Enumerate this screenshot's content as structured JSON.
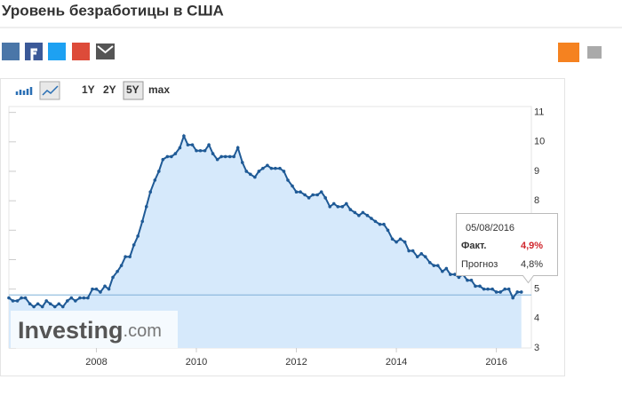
{
  "header": {
    "title": "Уровень безработицы в США"
  },
  "toolbar": {
    "ranges": [
      "1Y",
      "2Y",
      "5Y",
      "max"
    ]
  },
  "watermark": {
    "brand": "Investing",
    "suffix": ".com"
  },
  "tooltip": {
    "date": "05/08/2016",
    "actual": {
      "name": "Факт.",
      "value": 4.9,
      "label": "4,9%"
    },
    "forecast": {
      "name": "Прогноз",
      "value": 4.8,
      "label": "4,8%"
    }
  },
  "chart_data": {
    "type": "line",
    "color": "#1f5a96",
    "area_color": "#d6e9fb",
    "xlim": [
      2006.25,
      2016.7
    ],
    "xticks": [
      2008,
      2010,
      2012,
      2014,
      2016
    ],
    "ylim": [
      3,
      11.2
    ],
    "yticks": [
      3,
      4,
      5,
      6,
      7,
      8,
      9,
      10,
      11
    ],
    "x": [
      2006.25,
      2006.33,
      2006.42,
      2006.5,
      2006.58,
      2006.67,
      2006.75,
      2006.83,
      2006.92,
      2007.0,
      2007.08,
      2007.17,
      2007.25,
      2007.33,
      2007.42,
      2007.5,
      2007.58,
      2007.67,
      2007.75,
      2007.83,
      2007.92,
      2008.0,
      2008.08,
      2008.17,
      2008.25,
      2008.33,
      2008.42,
      2008.5,
      2008.58,
      2008.67,
      2008.75,
      2008.83,
      2008.92,
      2009.0,
      2009.08,
      2009.17,
      2009.25,
      2009.33,
      2009.42,
      2009.5,
      2009.58,
      2009.67,
      2009.75,
      2009.83,
      2009.92,
      2010.0,
      2010.08,
      2010.17,
      2010.25,
      2010.33,
      2010.42,
      2010.5,
      2010.58,
      2010.67,
      2010.75,
      2010.83,
      2010.92,
      2011.0,
      2011.08,
      2011.17,
      2011.25,
      2011.33,
      2011.42,
      2011.5,
      2011.58,
      2011.67,
      2011.75,
      2011.83,
      2011.92,
      2012.0,
      2012.08,
      2012.17,
      2012.25,
      2012.33,
      2012.42,
      2012.5,
      2012.58,
      2012.67,
      2012.75,
      2012.83,
      2012.92,
      2013.0,
      2013.08,
      2013.17,
      2013.25,
      2013.33,
      2013.42,
      2013.5,
      2013.58,
      2013.67,
      2013.75,
      2013.83,
      2013.92,
      2014.0,
      2014.08,
      2014.17,
      2014.25,
      2014.33,
      2014.42,
      2014.5,
      2014.58,
      2014.67,
      2014.75,
      2014.83,
      2014.92,
      2015.0,
      2015.08,
      2015.17,
      2015.25,
      2015.33,
      2015.42,
      2015.5,
      2015.58,
      2015.67,
      2015.75,
      2015.83,
      2015.92,
      2016.0,
      2016.08,
      2016.17,
      2016.25,
      2016.33,
      2016.42,
      2016.5
    ],
    "values": [
      4.7,
      4.6,
      4.6,
      4.7,
      4.7,
      4.5,
      4.4,
      4.5,
      4.4,
      4.6,
      4.5,
      4.4,
      4.5,
      4.4,
      4.6,
      4.7,
      4.6,
      4.7,
      4.7,
      4.7,
      5.0,
      5.0,
      4.9,
      5.1,
      5.0,
      5.4,
      5.6,
      5.8,
      6.1,
      6.1,
      6.5,
      6.8,
      7.3,
      7.8,
      8.3,
      8.7,
      9.0,
      9.4,
      9.5,
      9.5,
      9.6,
      9.8,
      10.2,
      9.9,
      9.9,
      9.7,
      9.7,
      9.7,
      9.9,
      9.6,
      9.4,
      9.5,
      9.5,
      9.5,
      9.5,
      9.8,
      9.3,
      9.0,
      8.9,
      8.8,
      9.0,
      9.1,
      9.2,
      9.1,
      9.1,
      9.1,
      9.0,
      8.7,
      8.5,
      8.3,
      8.3,
      8.2,
      8.1,
      8.2,
      8.2,
      8.3,
      8.1,
      7.8,
      7.9,
      7.8,
      7.8,
      7.9,
      7.7,
      7.6,
      7.5,
      7.6,
      7.5,
      7.4,
      7.3,
      7.2,
      7.2,
      7.0,
      6.7,
      6.6,
      6.7,
      6.6,
      6.3,
      6.3,
      6.1,
      6.2,
      6.1,
      5.9,
      5.8,
      5.8,
      5.6,
      5.7,
      5.5,
      5.5,
      5.4,
      5.5,
      5.3,
      5.3,
      5.1,
      5.1,
      5.0,
      5.0,
      5.0,
      4.9,
      4.9,
      5.0,
      5.0,
      4.7,
      4.9,
      4.9
    ]
  }
}
